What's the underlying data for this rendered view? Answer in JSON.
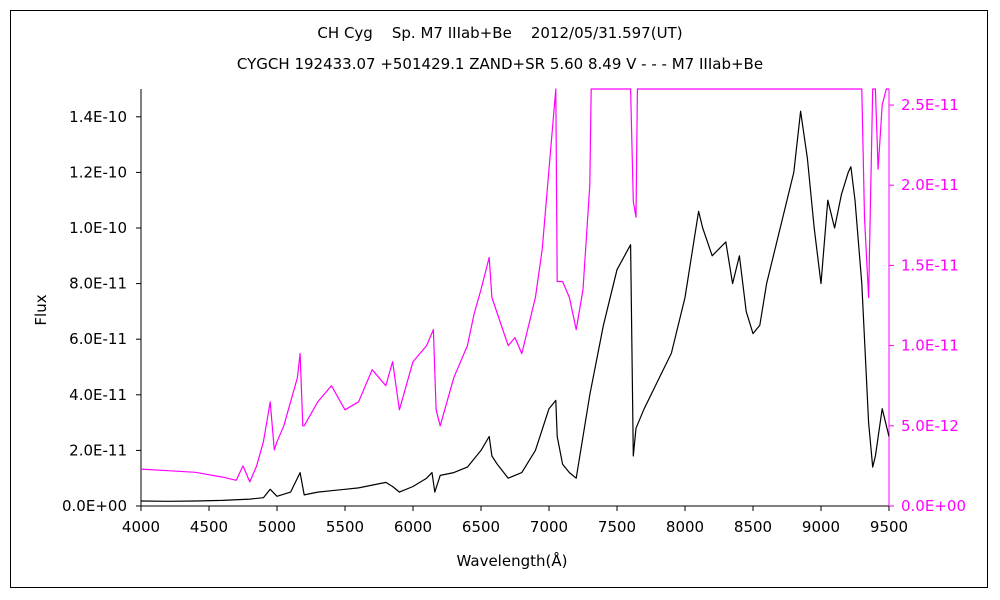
{
  "chart_data": {
    "type": "line",
    "title": "CH Cyg    Sp. M7 IIIab+Be    2012/05/31.597(UT)",
    "subtitle": "CYGCH 192433.07 +501429.1 ZAND+SR 5.60 8.49 V - - - M7 IIIab+Be",
    "xlabel": "Wavelength(Å)",
    "ylabel": "Flux",
    "xlim": [
      4000,
      9500
    ],
    "ylim_left": [
      0,
      1.5e-10
    ],
    "ylim_right": [
      0,
      2.6e-11
    ],
    "x_ticks": [
      "4000",
      "4500",
      "5000",
      "5500",
      "6000",
      "6500",
      "7000",
      "7500",
      "8000",
      "8500",
      "9000",
      "9500"
    ],
    "y_ticks_left": [
      "0.0E+00",
      "2.0E-11",
      "4.0E-11",
      "6.0E-11",
      "8.0E-11",
      "1.0E-10",
      "1.2E-10",
      "1.4E-10"
    ],
    "y_ticks_right": [
      "0.0E+00",
      "5.0E-12",
      "1.0E-11",
      "1.5E-11",
      "2.0E-11",
      "2.5E-11"
    ],
    "colors": {
      "left_axis": "#000000",
      "right_axis": "#ff00ff"
    },
    "series": [
      {
        "axis": "left",
        "color": "#000000",
        "x": [
          4000,
          4200,
          4400,
          4600,
          4800,
          4900,
          4950,
          5000,
          5100,
          5170,
          5200,
          5300,
          5400,
          5500,
          5600,
          5700,
          5800,
          5850,
          5900,
          6000,
          6100,
          6140,
          6160,
          6200,
          6300,
          6400,
          6500,
          6560,
          6580,
          6620,
          6700,
          6800,
          6900,
          7000,
          7050,
          7060,
          7100,
          7150,
          7200,
          7300,
          7400,
          7500,
          7600,
          7620,
          7640,
          7700,
          7800,
          7900,
          8000,
          8100,
          8130,
          8200,
          8300,
          8350,
          8400,
          8450,
          8500,
          8550,
          8600,
          8700,
          8800,
          8850,
          8900,
          8950,
          9000,
          9050,
          9100,
          9150,
          9200,
          9220,
          9250,
          9300,
          9350,
          9380,
          9400,
          9450,
          9500
        ],
        "y": [
          1.8e-12,
          1.7e-12,
          1.8e-12,
          2e-12,
          2.5e-12,
          3e-12,
          6e-12,
          3.5e-12,
          5e-12,
          1.2e-11,
          4e-12,
          5e-12,
          5.5e-12,
          6e-12,
          6.5e-12,
          7.5e-12,
          8.5e-12,
          7e-12,
          5e-12,
          7e-12,
          1e-11,
          1.2e-11,
          5e-12,
          1.1e-11,
          1.2e-11,
          1.4e-11,
          2e-11,
          2.5e-11,
          1.8e-11,
          1.5e-11,
          1e-11,
          1.2e-11,
          2e-11,
          3.5e-11,
          3.8e-11,
          2.5e-11,
          1.5e-11,
          1.2e-11,
          1e-11,
          4e-11,
          6.5e-11,
          8.5e-11,
          9.4e-11,
          1.8e-11,
          2.8e-11,
          3.5e-11,
          4.5e-11,
          5.5e-11,
          7.5e-11,
          1.06e-10,
          1e-10,
          9e-11,
          9.5e-11,
          8e-11,
          9e-11,
          7e-11,
          6.2e-11,
          6.5e-11,
          8e-11,
          1e-10,
          1.2e-10,
          1.42e-10,
          1.25e-10,
          1e-10,
          8e-11,
          1.1e-10,
          1e-10,
          1.12e-10,
          1.2e-10,
          1.22e-10,
          1.1e-10,
          8e-11,
          3e-11,
          1.4e-11,
          1.8e-11,
          3.5e-11,
          2.5e-11
        ]
      },
      {
        "axis": "right",
        "color": "#ff00ff",
        "x": [
          4000,
          4200,
          4400,
          4600,
          4700,
          4750,
          4800,
          4850,
          4900,
          4950,
          4980,
          5000,
          5050,
          5100,
          5150,
          5170,
          5190,
          5200,
          5300,
          5400,
          5500,
          5600,
          5650,
          5700,
          5800,
          5850,
          5900,
          5950,
          6000,
          6100,
          6150,
          6170,
          6200,
          6300,
          6400,
          6450,
          6500,
          6560,
          6580,
          6620,
          6700,
          6750,
          6800,
          6900,
          6950,
          7000,
          7050,
          7060,
          7100,
          7150,
          7200,
          7250,
          7300,
          7310,
          7320,
          7600,
          7620,
          7640,
          7650,
          9300,
          9320,
          9350,
          9380,
          9400,
          9420,
          9450,
          9480,
          9500
        ],
        "y": [
          2.3e-12,
          2.2e-12,
          2.1e-12,
          1.8e-12,
          1.6e-12,
          2.5e-12,
          1.5e-12,
          2.5e-12,
          4e-12,
          6.5e-12,
          3.5e-12,
          4e-12,
          5e-12,
          6.5e-12,
          8e-12,
          9.5e-12,
          5e-12,
          5e-12,
          6.5e-12,
          7.5e-12,
          6e-12,
          6.5e-12,
          7.5e-12,
          8.5e-12,
          7.5e-12,
          9e-12,
          6e-12,
          7.5e-12,
          9e-12,
          1e-11,
          1.1e-11,
          6e-12,
          5e-12,
          8e-12,
          1e-11,
          1.2e-11,
          1.35e-11,
          1.55e-11,
          1.3e-11,
          1.2e-11,
          1e-11,
          1.05e-11,
          9.5e-12,
          1.3e-11,
          1.6e-11,
          2.1e-11,
          2.6e-11,
          1.4e-11,
          1.4e-11,
          1.3e-11,
          1.1e-11,
          1.35e-11,
          2e-11,
          2.6e-11,
          2.6e-11,
          2.6e-11,
          1.9e-11,
          1.8e-11,
          2.6e-11,
          2.6e-11,
          1.8e-11,
          1.3e-11,
          2.6e-11,
          2.6e-11,
          2.1e-11,
          2.5e-11,
          2.6e-11,
          2.6e-11
        ]
      }
    ]
  }
}
